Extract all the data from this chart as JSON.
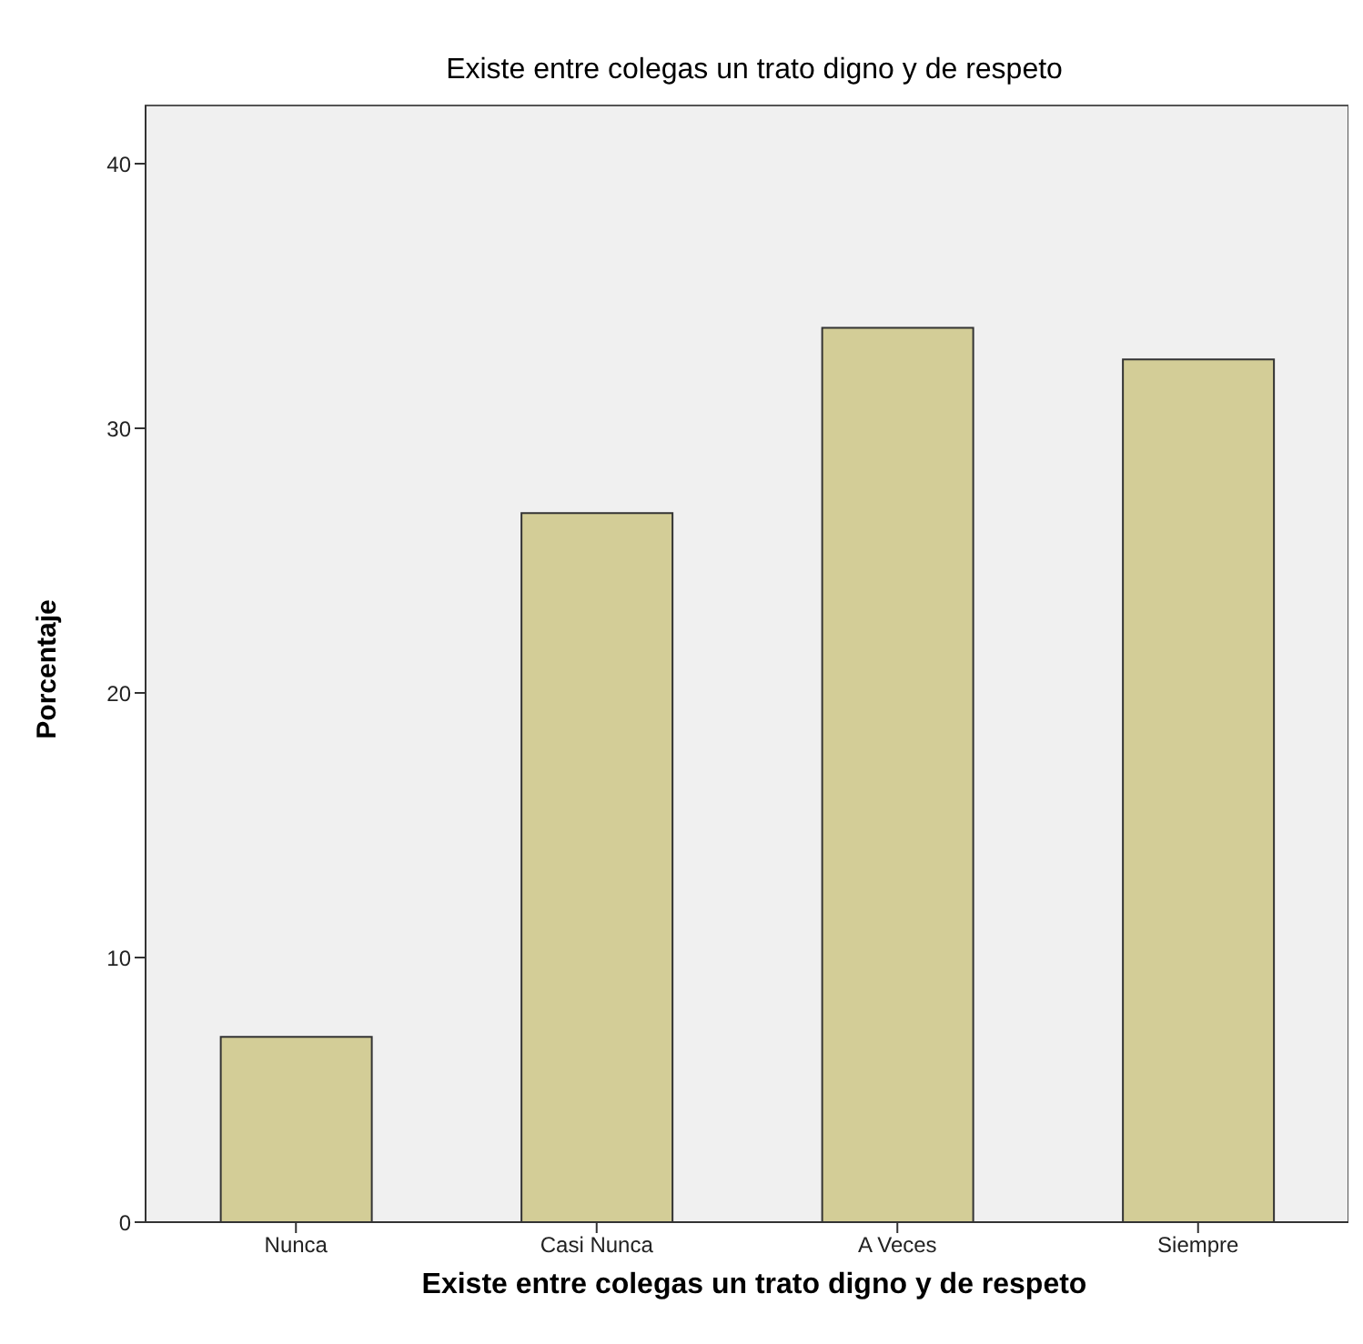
{
  "chart_data": {
    "type": "bar",
    "title": "Existe entre colegas un trato digno y de respeto",
    "xlabel": "Existe entre colegas un trato digno y de respeto",
    "ylabel": "Porcentaje",
    "categories": [
      "Nunca",
      "Casi Nunca",
      "A Veces",
      "Siempre"
    ],
    "values": [
      7.0,
      26.8,
      33.8,
      32.6
    ],
    "color": "#d3cd97",
    "ylim": [
      0,
      42.2
    ],
    "yticks": [
      0,
      10,
      20,
      30,
      40
    ]
  }
}
